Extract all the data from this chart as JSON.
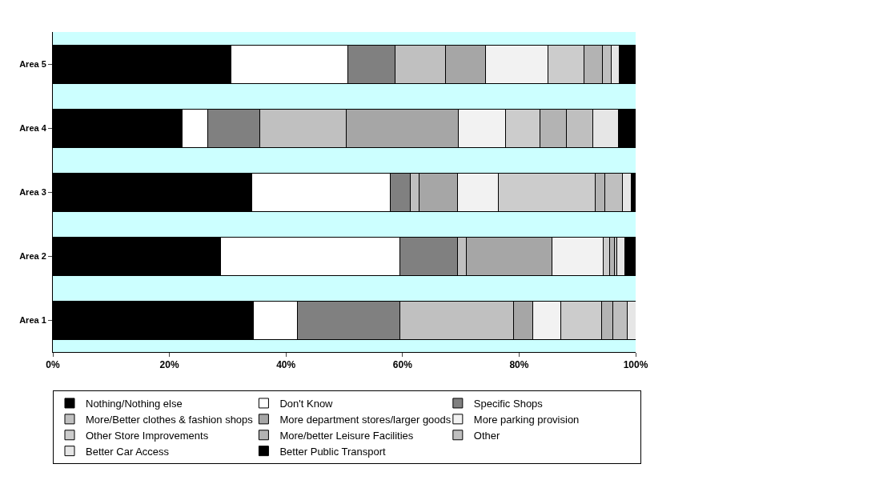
{
  "chart_data": {
    "type": "bar",
    "orientation": "horizontal",
    "stacked": true,
    "categories": [
      "Area 5",
      "Area 4",
      "Area 3",
      "Area 2",
      "Area 1"
    ],
    "xlim": [
      0,
      100
    ],
    "xticks": [
      {
        "value": 0,
        "label": "0%"
      },
      {
        "value": 20,
        "label": "20%"
      },
      {
        "value": 40,
        "label": "40%"
      },
      {
        "value": 60,
        "label": "60%"
      },
      {
        "value": 80,
        "label": "80%"
      },
      {
        "value": 100,
        "label": "100%"
      }
    ],
    "grid": false,
    "legend": "bottom",
    "series": [
      {
        "name": "Nothing/Nothing else",
        "color": "#000000",
        "values": [
          30.5,
          22.2,
          34.1,
          28.8,
          34.4
        ]
      },
      {
        "name": "Don't Know",
        "color": "#ffffff",
        "values": [
          20.1,
          4.4,
          23.8,
          30.7,
          7.5
        ]
      },
      {
        "name": "Specific Shops",
        "color": "#808080",
        "values": [
          8.1,
          8.9,
          3.4,
          9.9,
          17.6
        ]
      },
      {
        "name": "More/Better clothes & fashion shops",
        "color": "#c0c0c0",
        "values": [
          8.7,
          14.9,
          1.6,
          1.6,
          19.6
        ]
      },
      {
        "name": "More department stores/larger goods",
        "color": "#a6a6a6",
        "values": [
          6.8,
          19.2,
          6.5,
          14.6,
          3.2
        ]
      },
      {
        "name": "More parking provision",
        "color": "#f2f2f2",
        "values": [
          10.8,
          8.1,
          7.0,
          8.9,
          4.9
        ]
      },
      {
        "name": "Other Store Improvements",
        "color": "#cccccc",
        "values": [
          6.2,
          5.9,
          16.6,
          1.0,
          7.0
        ]
      },
      {
        "name": "More/better Leisure Facilities",
        "color": "#b3b3b3",
        "values": [
          3.1,
          4.5,
          1.7,
          0.8,
          1.9
        ]
      },
      {
        "name": "Other",
        "color": "#bfbfbf",
        "values": [
          1.5,
          4.5,
          3.0,
          0.5,
          2.5
        ]
      },
      {
        "name": "Better Car Access",
        "color": "#e6e6e6",
        "values": [
          1.4,
          4.4,
          1.6,
          1.3,
          1.4
        ]
      },
      {
        "name": "Better Public Transport",
        "color": "#000000",
        "values": [
          2.8,
          3.0,
          0.7,
          1.9,
          0
        ]
      }
    ]
  }
}
